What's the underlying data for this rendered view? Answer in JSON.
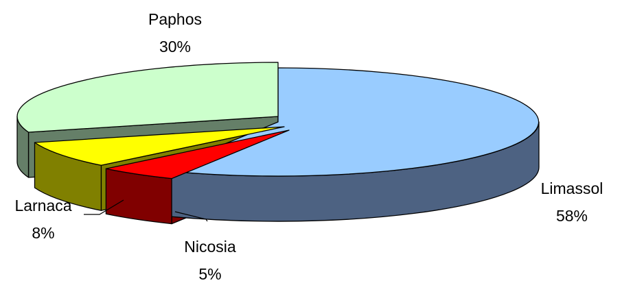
{
  "chart_data": {
    "type": "pie",
    "title": "",
    "style": "3d-exploded",
    "slices": [
      {
        "name": "Limassol",
        "value": 58,
        "label": "58%",
        "top_color": "#99ccff",
        "side_color": "#4d6282"
      },
      {
        "name": "Nicosia",
        "value": 5,
        "label": "5%",
        "top_color": "#ff0000",
        "side_color": "#800000"
      },
      {
        "name": "Larnaca",
        "value": 8,
        "label": "8%",
        "top_color": "#ffff00",
        "side_color": "#808000"
      },
      {
        "name": "Paphos",
        "value": 30,
        "label": "30%",
        "top_color": "#ccffcc",
        "side_color": "#657f68"
      }
    ]
  }
}
